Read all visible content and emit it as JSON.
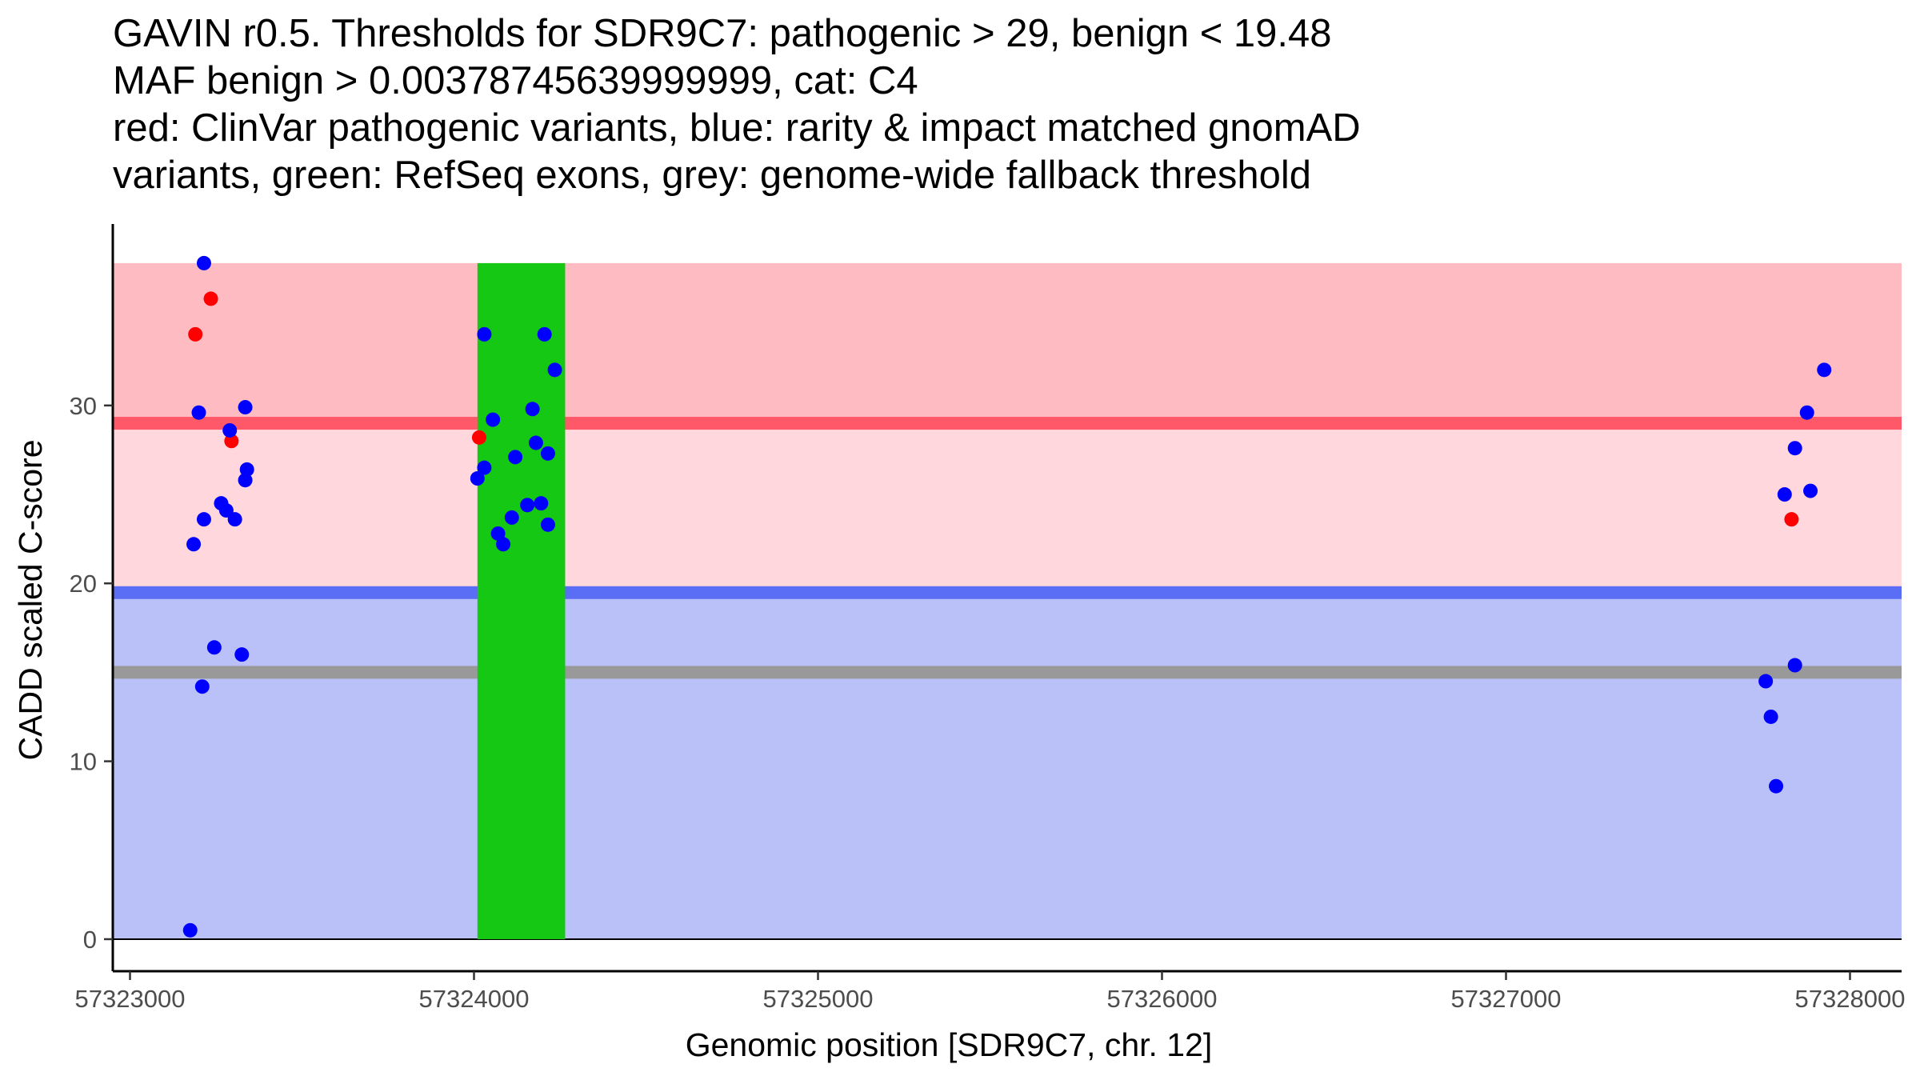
{
  "chart_data": {
    "type": "scatter",
    "title_lines": [
      "GAVIN r0.5. Thresholds for SDR9C7: pathogenic > 29, benign < 19.48",
      "MAF benign > 0.00378745639999999, cat: C4",
      "red: ClinVar pathogenic variants, blue: rarity & impact matched gnomAD",
      "variants, green: RefSeq exons, grey: genome-wide fallback threshold"
    ],
    "xlabel": "Genomic position [SDR9C7, chr. 12]",
    "ylabel": "CADD scaled C-score",
    "xlim": [
      57322950,
      57328150
    ],
    "ylim": [
      -1.8,
      40.2
    ],
    "x_ticks": [
      {
        "value": 57323000,
        "label": "57323000"
      },
      {
        "value": 57324000,
        "label": "57324000"
      },
      {
        "value": 57325000,
        "label": "57325000"
      },
      {
        "value": 57326000,
        "label": "57326000"
      },
      {
        "value": 57327000,
        "label": "57327000"
      },
      {
        "value": 57328000,
        "label": "57328000"
      }
    ],
    "y_ticks": [
      {
        "value": 0,
        "label": "0"
      },
      {
        "value": 10,
        "label": "10"
      },
      {
        "value": 20,
        "label": "20"
      },
      {
        "value": 30,
        "label": "30"
      }
    ],
    "grid": false,
    "thresholds": {
      "pathogenic": 29,
      "benign": 19.48,
      "fallback": 15,
      "score_max": 38
    },
    "exon": {
      "start": 57324010,
      "end": 57324265
    },
    "colors": {
      "pathogenic_band": "#ffbbc2",
      "between_band": "#ffd7dd",
      "benign_band": "#bac1f9",
      "pathogenic_line": "#ff5869",
      "benign_line": "#5a6ef5",
      "fallback_line": "#999999",
      "exon": "#14c814",
      "clinvar_point": "#ff0000",
      "gnomad_point": "#0000ff",
      "axis": "#000000"
    },
    "series": [
      {
        "name": "ClinVar pathogenic variants",
        "color": "#ff0000",
        "points": [
          {
            "x": 57323190,
            "y": 34.0
          },
          {
            "x": 57323235,
            "y": 36.0
          },
          {
            "x": 57323295,
            "y": 28.0
          },
          {
            "x": 57324015,
            "y": 28.2
          },
          {
            "x": 57327830,
            "y": 23.6
          }
        ]
      },
      {
        "name": "rarity & impact matched gnomAD variants",
        "color": "#0000ff",
        "points": [
          {
            "x": 57323215,
            "y": 38.0
          },
          {
            "x": 57323200,
            "y": 29.6
          },
          {
            "x": 57323335,
            "y": 29.9
          },
          {
            "x": 57323290,
            "y": 28.6
          },
          {
            "x": 57323340,
            "y": 26.4
          },
          {
            "x": 57323335,
            "y": 25.8
          },
          {
            "x": 57323265,
            "y": 24.5
          },
          {
            "x": 57323280,
            "y": 24.1
          },
          {
            "x": 57323215,
            "y": 23.6
          },
          {
            "x": 57323305,
            "y": 23.6
          },
          {
            "x": 57323185,
            "y": 22.2
          },
          {
            "x": 57323245,
            "y": 16.4
          },
          {
            "x": 57323325,
            "y": 16.0
          },
          {
            "x": 57323210,
            "y": 14.2
          },
          {
            "x": 57323175,
            "y": 0.5
          },
          {
            "x": 57324030,
            "y": 34.0
          },
          {
            "x": 57324205,
            "y": 34.0
          },
          {
            "x": 57324235,
            "y": 32.0
          },
          {
            "x": 57324170,
            "y": 29.8
          },
          {
            "x": 57324055,
            "y": 29.2
          },
          {
            "x": 57324180,
            "y": 27.9
          },
          {
            "x": 57324215,
            "y": 27.3
          },
          {
            "x": 57324120,
            "y": 27.1
          },
          {
            "x": 57324030,
            "y": 26.5
          },
          {
            "x": 57324010,
            "y": 25.9
          },
          {
            "x": 57324155,
            "y": 24.4
          },
          {
            "x": 57324195,
            "y": 24.5
          },
          {
            "x": 57324110,
            "y": 23.7
          },
          {
            "x": 57324215,
            "y": 23.3
          },
          {
            "x": 57324070,
            "y": 22.8
          },
          {
            "x": 57324085,
            "y": 22.2
          },
          {
            "x": 57327925,
            "y": 32.0
          },
          {
            "x": 57327875,
            "y": 29.6
          },
          {
            "x": 57327840,
            "y": 27.6
          },
          {
            "x": 57327885,
            "y": 25.2
          },
          {
            "x": 57327810,
            "y": 25.0
          },
          {
            "x": 57327840,
            "y": 15.4
          },
          {
            "x": 57327755,
            "y": 14.5
          },
          {
            "x": 57327770,
            "y": 12.5
          },
          {
            "x": 57327785,
            "y": 8.6
          }
        ]
      }
    ]
  }
}
